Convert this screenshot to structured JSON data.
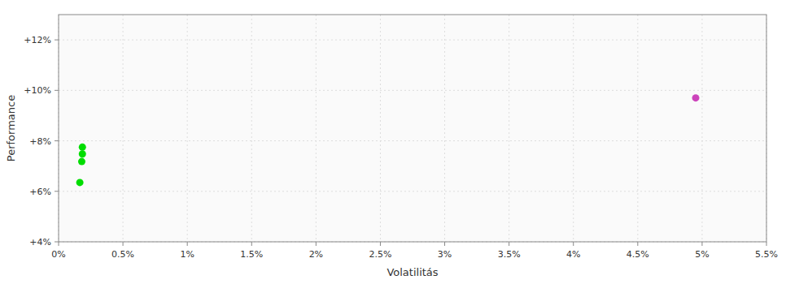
{
  "chart_data": {
    "type": "scatter",
    "xlabel": "Volatilitás",
    "ylabel": "Performance",
    "xlim": [
      0.0,
      0.055
    ],
    "ylim": [
      0.04,
      0.13
    ],
    "xticks": [
      {
        "value": 0.0,
        "label": "0%"
      },
      {
        "value": 0.005,
        "label": "0.5%"
      },
      {
        "value": 0.01,
        "label": "1%"
      },
      {
        "value": 0.015,
        "label": "1.5%"
      },
      {
        "value": 0.02,
        "label": "2%"
      },
      {
        "value": 0.025,
        "label": "2.5%"
      },
      {
        "value": 0.03,
        "label": "3%"
      },
      {
        "value": 0.035,
        "label": "3.5%"
      },
      {
        "value": 0.04,
        "label": "4%"
      },
      {
        "value": 0.045,
        "label": "4.5%"
      },
      {
        "value": 0.05,
        "label": "5%"
      },
      {
        "value": 0.055,
        "label": "5.5%"
      }
    ],
    "yticks": [
      {
        "value": 0.04,
        "label": "+4%"
      },
      {
        "value": 0.06,
        "label": "+6%"
      },
      {
        "value": 0.08,
        "label": "+8%"
      },
      {
        "value": 0.1,
        "label": "+10%"
      },
      {
        "value": 0.12,
        "label": "+12%"
      }
    ],
    "grid": true,
    "series": [
      {
        "color": "#00dd00",
        "x": [
          0.00185,
          0.00185,
          0.0018,
          0.00165
        ],
        "values": [
          0.0775,
          0.0748,
          0.0718,
          0.0635
        ]
      },
      {
        "color": "#cc44bb",
        "x": [
          0.0495
        ],
        "values": [
          0.097
        ]
      }
    ]
  }
}
